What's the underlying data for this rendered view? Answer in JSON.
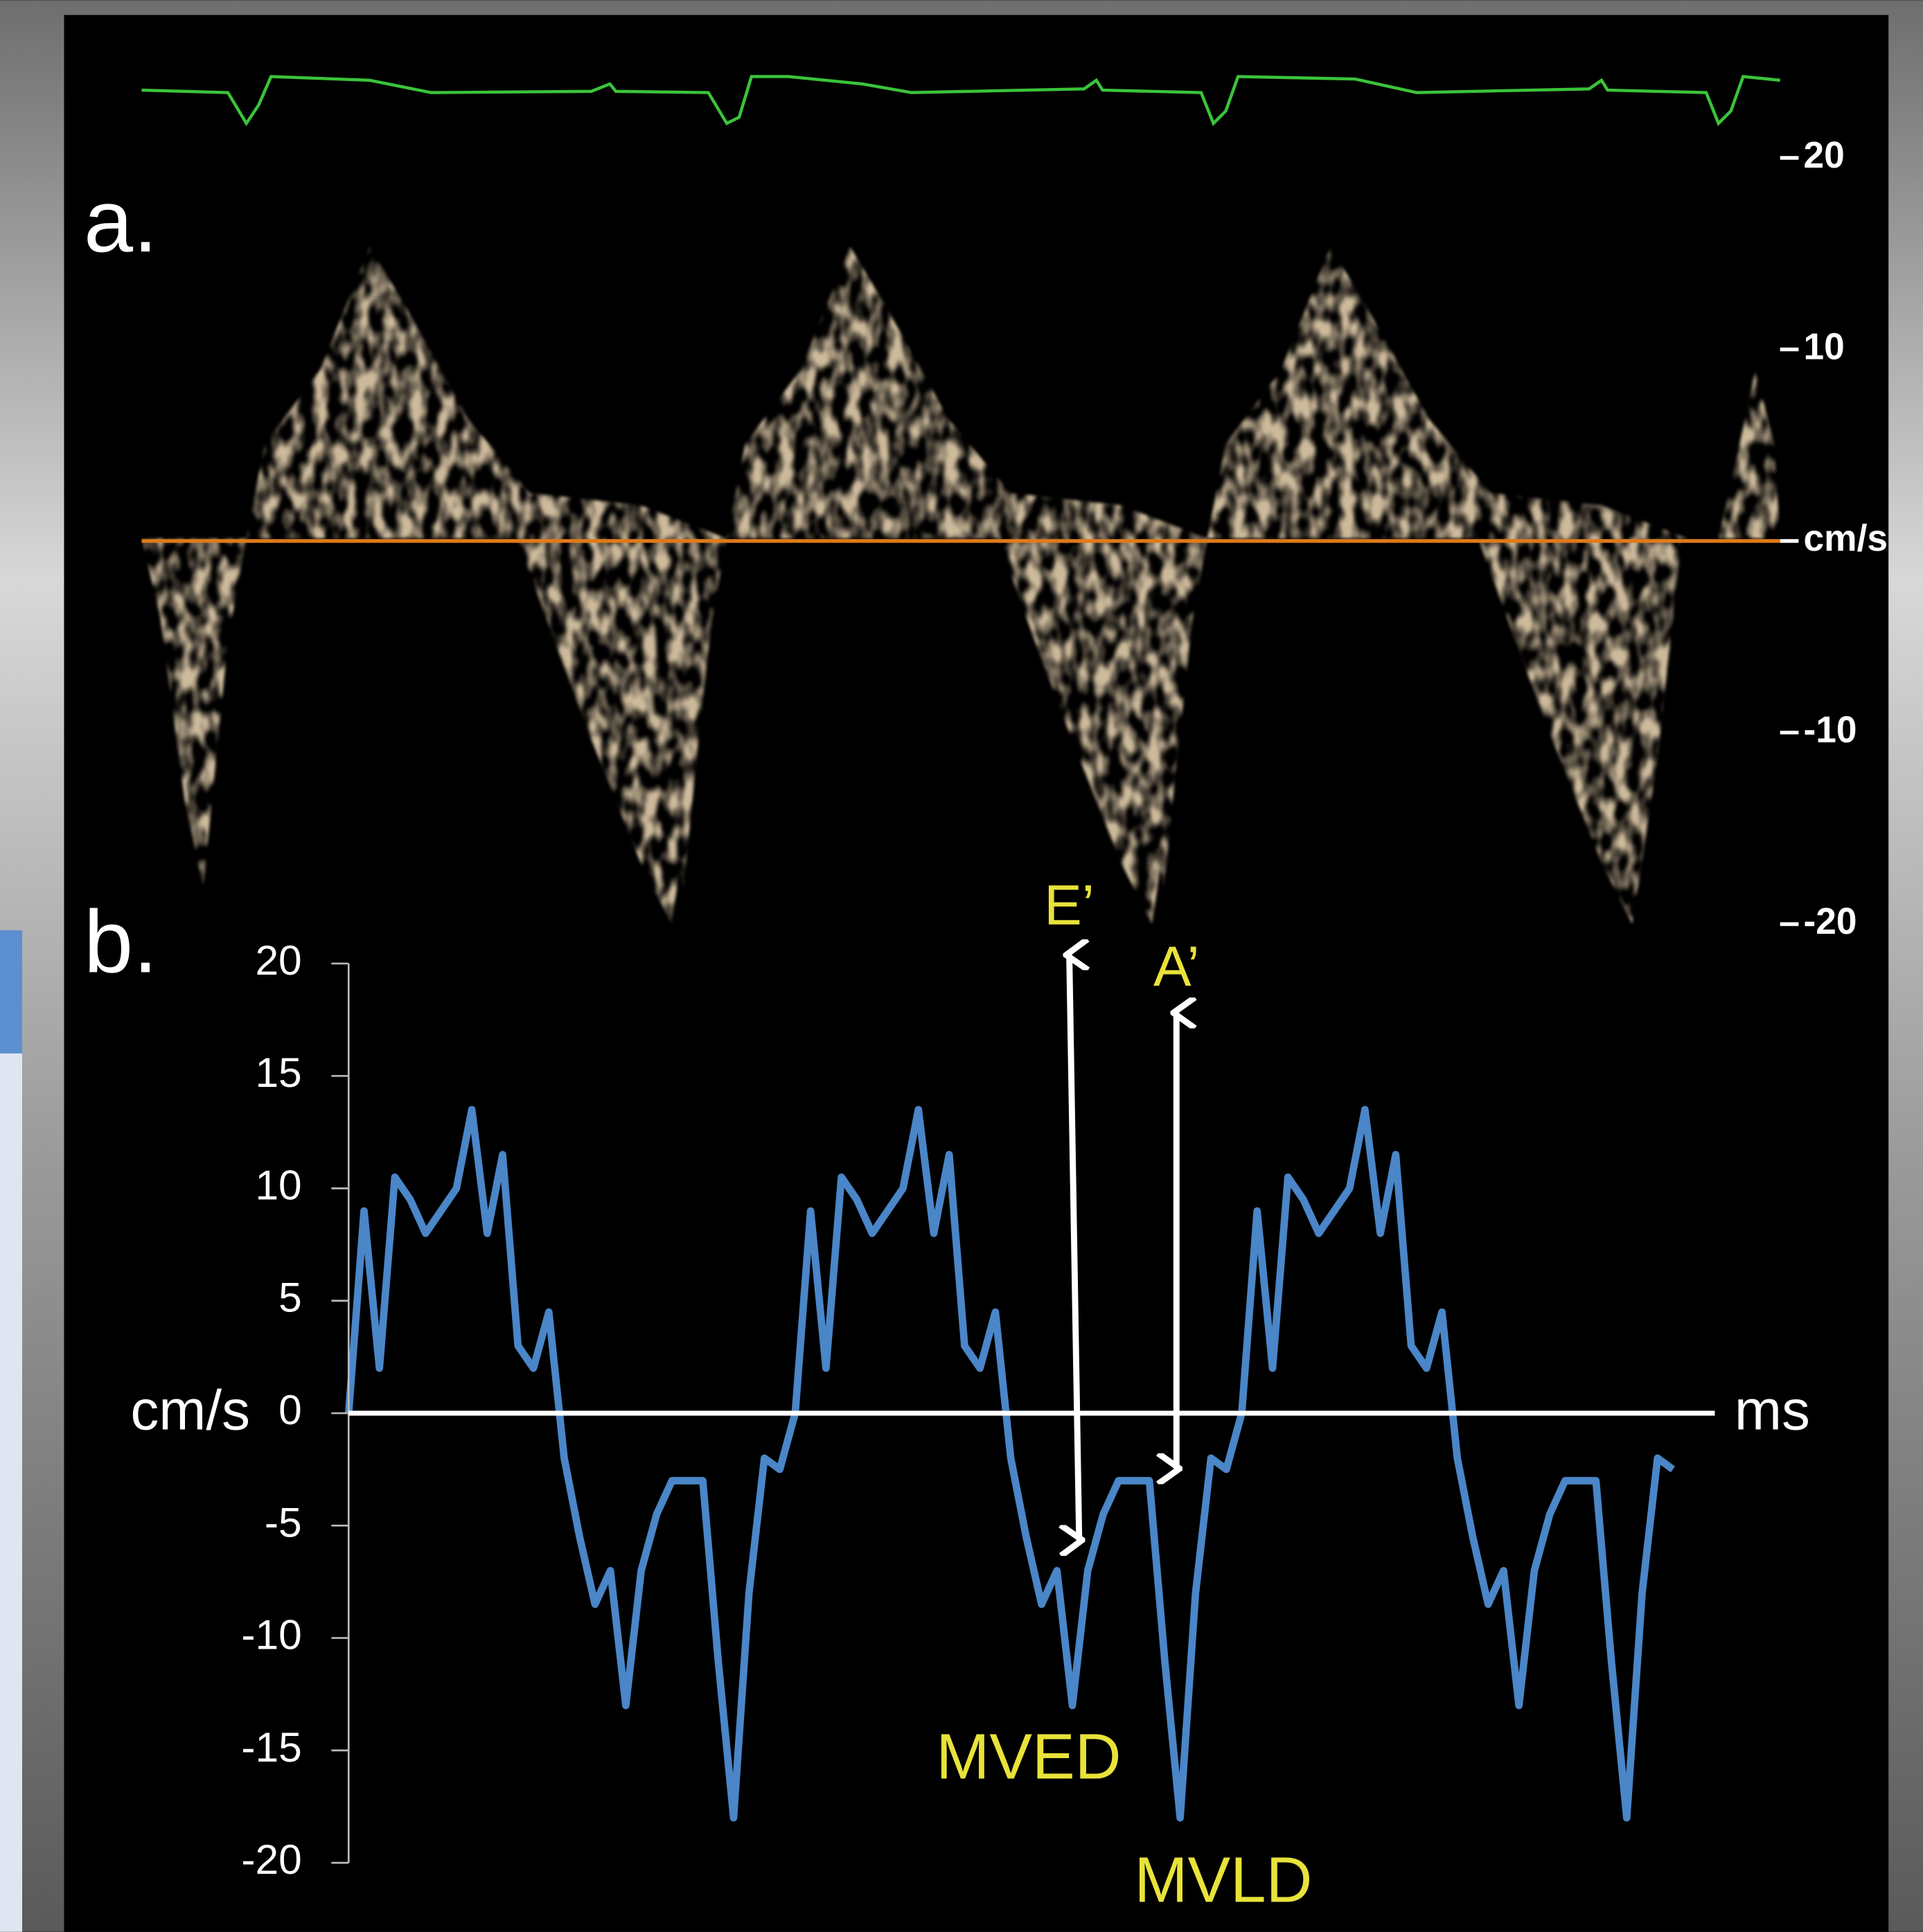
{
  "chart_data": [
    {
      "type": "spectrogram",
      "label": "a.",
      "ylim": [
        -20,
        20
      ],
      "yticks": [
        20,
        10,
        {
          "value": 0,
          "label": "cm/s"
        },
        -10,
        -20
      ]
    },
    {
      "type": "line",
      "label": "b.",
      "ylabel": "cm/s",
      "xlabel": "ms",
      "color": "#4a86c8",
      "values": [
        0,
        9,
        2,
        10.5,
        9.5,
        8,
        9,
        10,
        13.5,
        8,
        11.5,
        3,
        2,
        4.5,
        -2,
        -5.5,
        -8.5,
        -7,
        -13,
        -7,
        -4.5,
        -3,
        -3,
        -3,
        -11,
        -18,
        -8,
        -2,
        -2.5,
        0,
        9,
        2,
        10.5,
        9.5,
        8,
        9,
        10,
        13.5,
        8,
        11.5,
        3,
        2,
        4.5,
        -2,
        -5.5,
        -8.5,
        -7,
        -13,
        -7,
        -4.5,
        -3,
        -3,
        -3,
        -11,
        -18,
        -8,
        -2,
        -2.5,
        0,
        9,
        2,
        10.5,
        9.5,
        8,
        9,
        10,
        13.5,
        8,
        11.5,
        3,
        2,
        4.5,
        -2,
        -5.5,
        -8.5,
        -7,
        -13,
        -7,
        -4.5,
        -3,
        -3,
        -3,
        -11,
        -18,
        -8,
        -2,
        -2.5
      ],
      "ylim": [
        -20,
        20
      ],
      "yticks": [
        20,
        15,
        10,
        5,
        0,
        -5,
        -10,
        -15,
        -20
      ],
      "annotations": [
        "E’",
        "A’",
        "MVED",
        "MVLD"
      ]
    }
  ]
}
